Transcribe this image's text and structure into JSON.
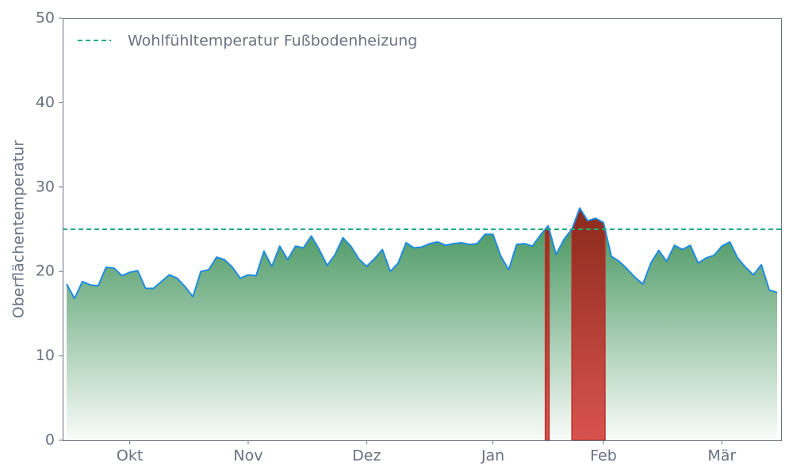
{
  "chart_data": {
    "type": "area",
    "ylabel": "Oberflächentemperatur",
    "categories": [
      null,
      null,
      null,
      null,
      null,
      null,
      null,
      null,
      "Okt",
      null,
      null,
      null,
      null,
      null,
      null,
      null,
      null,
      null,
      null,
      null,
      null,
      null,
      null,
      "Nov",
      null,
      null,
      null,
      null,
      null,
      null,
      null,
      null,
      null,
      null,
      null,
      null,
      null,
      null,
      "Dez",
      null,
      null,
      null,
      null,
      null,
      null,
      null,
      null,
      null,
      null,
      null,
      null,
      null,
      null,
      null,
      "Jan",
      null,
      null,
      null,
      null,
      null,
      null,
      null,
      null,
      null,
      null,
      null,
      null,
      null,
      "Feb",
      null,
      null,
      null,
      null,
      null,
      null,
      null,
      null,
      null,
      null,
      null,
      null,
      null,
      null,
      "Mär",
      null,
      null,
      null,
      null,
      null,
      null,
      null
    ],
    "values": [
      18.5,
      16.8,
      18.8,
      18.4,
      18.3,
      20.5,
      20.4,
      19.5,
      19.9,
      20.1,
      18.0,
      18.0,
      18.8,
      19.6,
      19.2,
      18.2,
      17.0,
      20.0,
      20.2,
      21.7,
      21.4,
      20.5,
      19.2,
      19.6,
      19.5,
      22.4,
      20.6,
      23.0,
      21.4,
      23.0,
      22.8,
      24.2,
      22.6,
      20.7,
      22.0,
      24.0,
      23.0,
      21.5,
      20.6,
      21.5,
      22.6,
      20.0,
      21.0,
      23.4,
      22.8,
      22.9,
      23.3,
      23.5,
      23.1,
      23.3,
      23.4,
      23.2,
      23.3,
      24.4,
      24.4,
      21.8,
      20.2,
      23.2,
      23.3,
      23.0,
      24.3,
      25.4,
      22.0,
      23.8,
      25.0,
      27.5,
      26.0,
      26.3,
      25.8,
      21.8,
      21.2,
      20.3,
      19.3,
      18.5,
      21.0,
      22.5,
      21.2,
      23.1,
      22.6,
      23.1,
      21.0,
      21.6,
      21.9,
      23.0,
      23.5,
      21.6,
      20.5,
      19.6,
      20.8,
      17.8,
      17.5
    ],
    "color": "#1f8be0",
    "fill_color": "#3a8f55",
    "above_color": "#b8322a",
    "reference_line": {
      "value": 25,
      "label": "Wohlfühltemperatur Fußbodenheizung",
      "color": "#1aae7a"
    },
    "legend": "upper left",
    "ylim": [
      0,
      50
    ],
    "yticks": [
      0,
      10,
      20,
      30,
      40,
      50
    ]
  }
}
